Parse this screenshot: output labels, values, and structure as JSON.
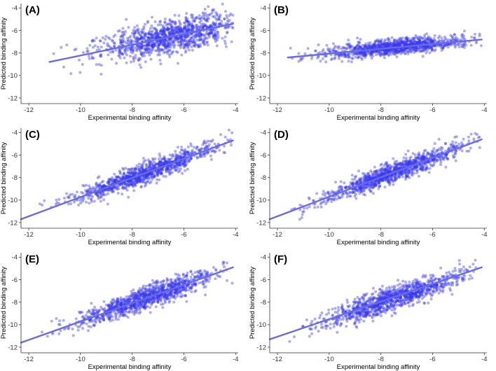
{
  "figure": {
    "point_color": "#3a3aee",
    "line_color": "#6a6ae6",
    "point_opacity": 0.42
  },
  "chart_data": [
    {
      "type": "scatter",
      "panel_label": "(A)",
      "xlabel": "Experimental binding affinity",
      "ylabel": "Predicted binding affinity",
      "xlim": [
        -12.3,
        -3.9
      ],
      "ylim": [
        -12.5,
        -3.6
      ],
      "x_ticks": [
        -12,
        -10,
        -8,
        -6,
        -4
      ],
      "x_tick_labels": [
        "-12",
        "-10",
        "-8",
        "-6",
        "-4"
      ],
      "y_ticks": [
        -12,
        -10,
        -8,
        -6,
        -4
      ],
      "y_tick_labels": [
        "-12",
        "-10",
        "-8",
        "-6",
        "-4"
      ],
      "grid": false,
      "fit_line": {
        "x": [
          -11.2,
          -4.1
        ],
        "y": [
          -8.8,
          -5.4
        ]
      },
      "points": {
        "x_range": [
          -11.2,
          -4.1
        ],
        "x_center": -6.5,
        "slope": 0.48,
        "intercept": -3.4,
        "noise_sd": 0.75
      }
    },
    {
      "type": "scatter",
      "panel_label": "(B)",
      "xlabel": "Experimental binding affinity",
      "ylabel": "Predicted binding affinity",
      "xlim": [
        -12.3,
        -3.9
      ],
      "ylim": [
        -12.5,
        -3.6
      ],
      "x_ticks": [
        -12,
        -10,
        -8,
        -6,
        -4
      ],
      "x_tick_labels": [
        "-12",
        "-10",
        "-8",
        "-6",
        "-4"
      ],
      "y_ticks": [
        -12,
        -10,
        -8,
        -6,
        -4
      ],
      "y_tick_labels": [
        "-12",
        "-10",
        "-8",
        "-6",
        "-4"
      ],
      "grid": false,
      "fit_line": {
        "x": [
          -11.6,
          -4.1
        ],
        "y": [
          -8.4,
          -6.8
        ]
      },
      "points": {
        "x_range": [
          -11.6,
          -4.1
        ],
        "x_center": -7.5,
        "slope": 0.21,
        "intercept": -5.9,
        "noise_sd": 0.35
      }
    },
    {
      "type": "scatter",
      "panel_label": "(C)",
      "xlabel": "Experimental binding affinity",
      "ylabel": "Predicted binding affinity",
      "xlim": [
        -12.3,
        -3.9
      ],
      "ylim": [
        -12.5,
        -3.6
      ],
      "x_ticks": [
        -12,
        -10,
        -8,
        -6,
        -4
      ],
      "x_tick_labels": [
        "-12",
        "-10",
        "-8",
        "-6",
        "-4"
      ],
      "y_ticks": [
        -12,
        -10,
        -8,
        -6,
        -4
      ],
      "y_tick_labels": [
        "-12",
        "-10",
        "-8",
        "-6",
        "-4"
      ],
      "grid": false,
      "fit_line": {
        "x": [
          -12.3,
          -4.1
        ],
        "y": [
          -11.7,
          -4.7
        ]
      },
      "points": {
        "x_range": [
          -11.6,
          -4.1
        ],
        "x_center": -7.5,
        "slope": 0.85,
        "intercept": -1.2,
        "noise_sd": 0.45
      }
    },
    {
      "type": "scatter",
      "panel_label": "(D)",
      "xlabel": "Experimental binding affinity",
      "ylabel": "Predicted binding affinity",
      "xlim": [
        -12.3,
        -3.9
      ],
      "ylim": [
        -12.5,
        -3.6
      ],
      "x_ticks": [
        -12,
        -10,
        -8,
        -6,
        -4
      ],
      "x_tick_labels": [
        "-12",
        "-10",
        "-8",
        "-6",
        "-4"
      ],
      "y_ticks": [
        -12,
        -10,
        -8,
        -6,
        -4
      ],
      "y_tick_labels": [
        "-12",
        "-10",
        "-8",
        "-6",
        "-4"
      ],
      "grid": false,
      "fit_line": {
        "x": [
          -12.3,
          -4.1
        ],
        "y": [
          -11.7,
          -4.6
        ]
      },
      "points": {
        "x_range": [
          -11.6,
          -4.1
        ],
        "x_center": -7.5,
        "slope": 0.87,
        "intercept": -1.0,
        "noise_sd": 0.42
      }
    },
    {
      "type": "scatter",
      "panel_label": "(E)",
      "xlabel": "Experimental binding affinity",
      "ylabel": "Predicted binding affinity",
      "xlim": [
        -12.3,
        -3.9
      ],
      "ylim": [
        -12.5,
        -3.6
      ],
      "x_ticks": [
        -12,
        -10,
        -8,
        -6,
        -4
      ],
      "x_tick_labels": [
        "-12",
        "-10",
        "-8",
        "-6",
        "-4"
      ],
      "y_ticks": [
        -12,
        -10,
        -8,
        -6,
        -4
      ],
      "y_tick_labels": [
        "-12",
        "-10",
        "-8",
        "-6",
        "-4"
      ],
      "grid": false,
      "fit_line": {
        "x": [
          -12.3,
          -4.1
        ],
        "y": [
          -11.6,
          -4.9
        ]
      },
      "points": {
        "x_range": [
          -11.8,
          -4.1
        ],
        "x_center": -7.5,
        "slope": 0.82,
        "intercept": -1.5,
        "noise_sd": 0.48
      }
    },
    {
      "type": "scatter",
      "panel_label": "(F)",
      "xlabel": "Experimental binding affinity",
      "ylabel": "Predicted binding affinity",
      "xlim": [
        -12.3,
        -3.9
      ],
      "ylim": [
        -12.5,
        -3.6
      ],
      "x_ticks": [
        -12,
        -10,
        -8,
        -6,
        -4
      ],
      "x_tick_labels": [
        "-12",
        "-10",
        "-8",
        "-6",
        "-4"
      ],
      "y_ticks": [
        -12,
        -10,
        -8,
        -6,
        -4
      ],
      "y_tick_labels": [
        "-12",
        "-10",
        "-8",
        "-6",
        "-4"
      ],
      "grid": false,
      "fit_line": {
        "x": [
          -12.3,
          -4.1
        ],
        "y": [
          -11.3,
          -4.9
        ]
      },
      "points": {
        "x_range": [
          -11.8,
          -4.1
        ],
        "x_center": -7.5,
        "slope": 0.78,
        "intercept": -1.8,
        "noise_sd": 0.52
      }
    }
  ]
}
